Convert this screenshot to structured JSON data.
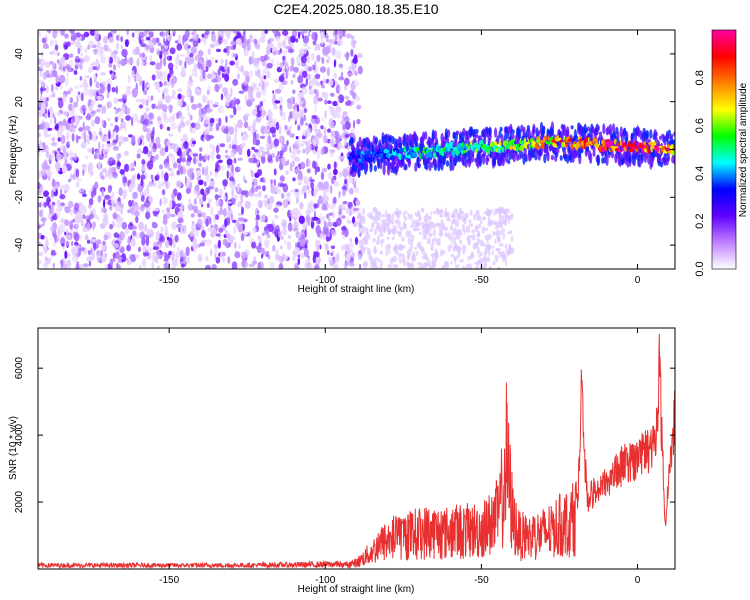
{
  "title": "C2E4.2025.080.18.35.E10",
  "chart_data": [
    {
      "type": "heatmap",
      "xlabel": "Height of straight line (km)",
      "ylabel": "Frequency (Hz)",
      "xlim": [
        -192,
        12
      ],
      "ylim": [
        -50,
        50
      ],
      "xticks": [
        -150,
        -100,
        -50,
        0
      ],
      "yticks": [
        -40,
        -20,
        0,
        20,
        40
      ],
      "colorbar": {
        "label": "Normalized spectral amplitude",
        "range": [
          0,
          1
        ],
        "ticks": [
          "0.0",
          "0.2",
          "0.4",
          "0.6",
          "0.8"
        ],
        "colors": [
          "#ffffff",
          "#c080ff",
          "#6000ff",
          "#0000ff",
          "#00ffff",
          "#00ff00",
          "#ffff00",
          "#ff8000",
          "#ff0000",
          "#ff00a0"
        ]
      },
      "noise_region": {
        "x": [
          -192,
          -90
        ],
        "y": [
          -50,
          50
        ],
        "amplitude": 0.1
      },
      "signal_band": {
        "x": [
          -92,
          -80,
          -70,
          -60,
          -50,
          -40,
          -30,
          -20,
          -10,
          0,
          12
        ],
        "y": [
          -3,
          -2,
          -1,
          0,
          1,
          2,
          3,
          3,
          2,
          1,
          0
        ],
        "amplitude": [
          0.35,
          0.4,
          0.45,
          0.5,
          0.55,
          0.6,
          0.7,
          0.8,
          0.9,
          0.95,
          0.8
        ]
      }
    },
    {
      "type": "line",
      "xlabel": "Height of straight line (km)",
      "ylabel": "SNR (10 * v/v)",
      "xlim": [
        -192,
        12
      ],
      "ylim": [
        0,
        7200
      ],
      "xticks": [
        -150,
        -100,
        -50,
        0
      ],
      "yticks": [
        2000,
        4000,
        6000
      ],
      "color": "#e83030",
      "series": [
        {
          "x": [
            -192,
            -170,
            -150,
            -130,
            -110,
            -95,
            -90,
            -86,
            -82,
            -78,
            -74,
            -70,
            -66,
            -62,
            -58,
            -54,
            -50,
            -46,
            -44,
            -42,
            -40,
            -38,
            -35,
            -30,
            -26,
            -22,
            -19,
            -18,
            -16,
            -12,
            -8,
            -4,
            0,
            4,
            6,
            7,
            8,
            9,
            10,
            11,
            12
          ],
          "y": [
            100,
            100,
            100,
            100,
            120,
            150,
            300,
            700,
            1200,
            1500,
            1600,
            1700,
            1800,
            1700,
            1800,
            1800,
            1900,
            2200,
            2800,
            5200,
            2500,
            1600,
            1500,
            1700,
            2000,
            2200,
            2600,
            5800,
            2400,
            2800,
            3200,
            3600,
            3800,
            4100,
            4500,
            7100,
            4000,
            1300,
            3200,
            3900,
            5700
          ]
        }
      ]
    }
  ]
}
